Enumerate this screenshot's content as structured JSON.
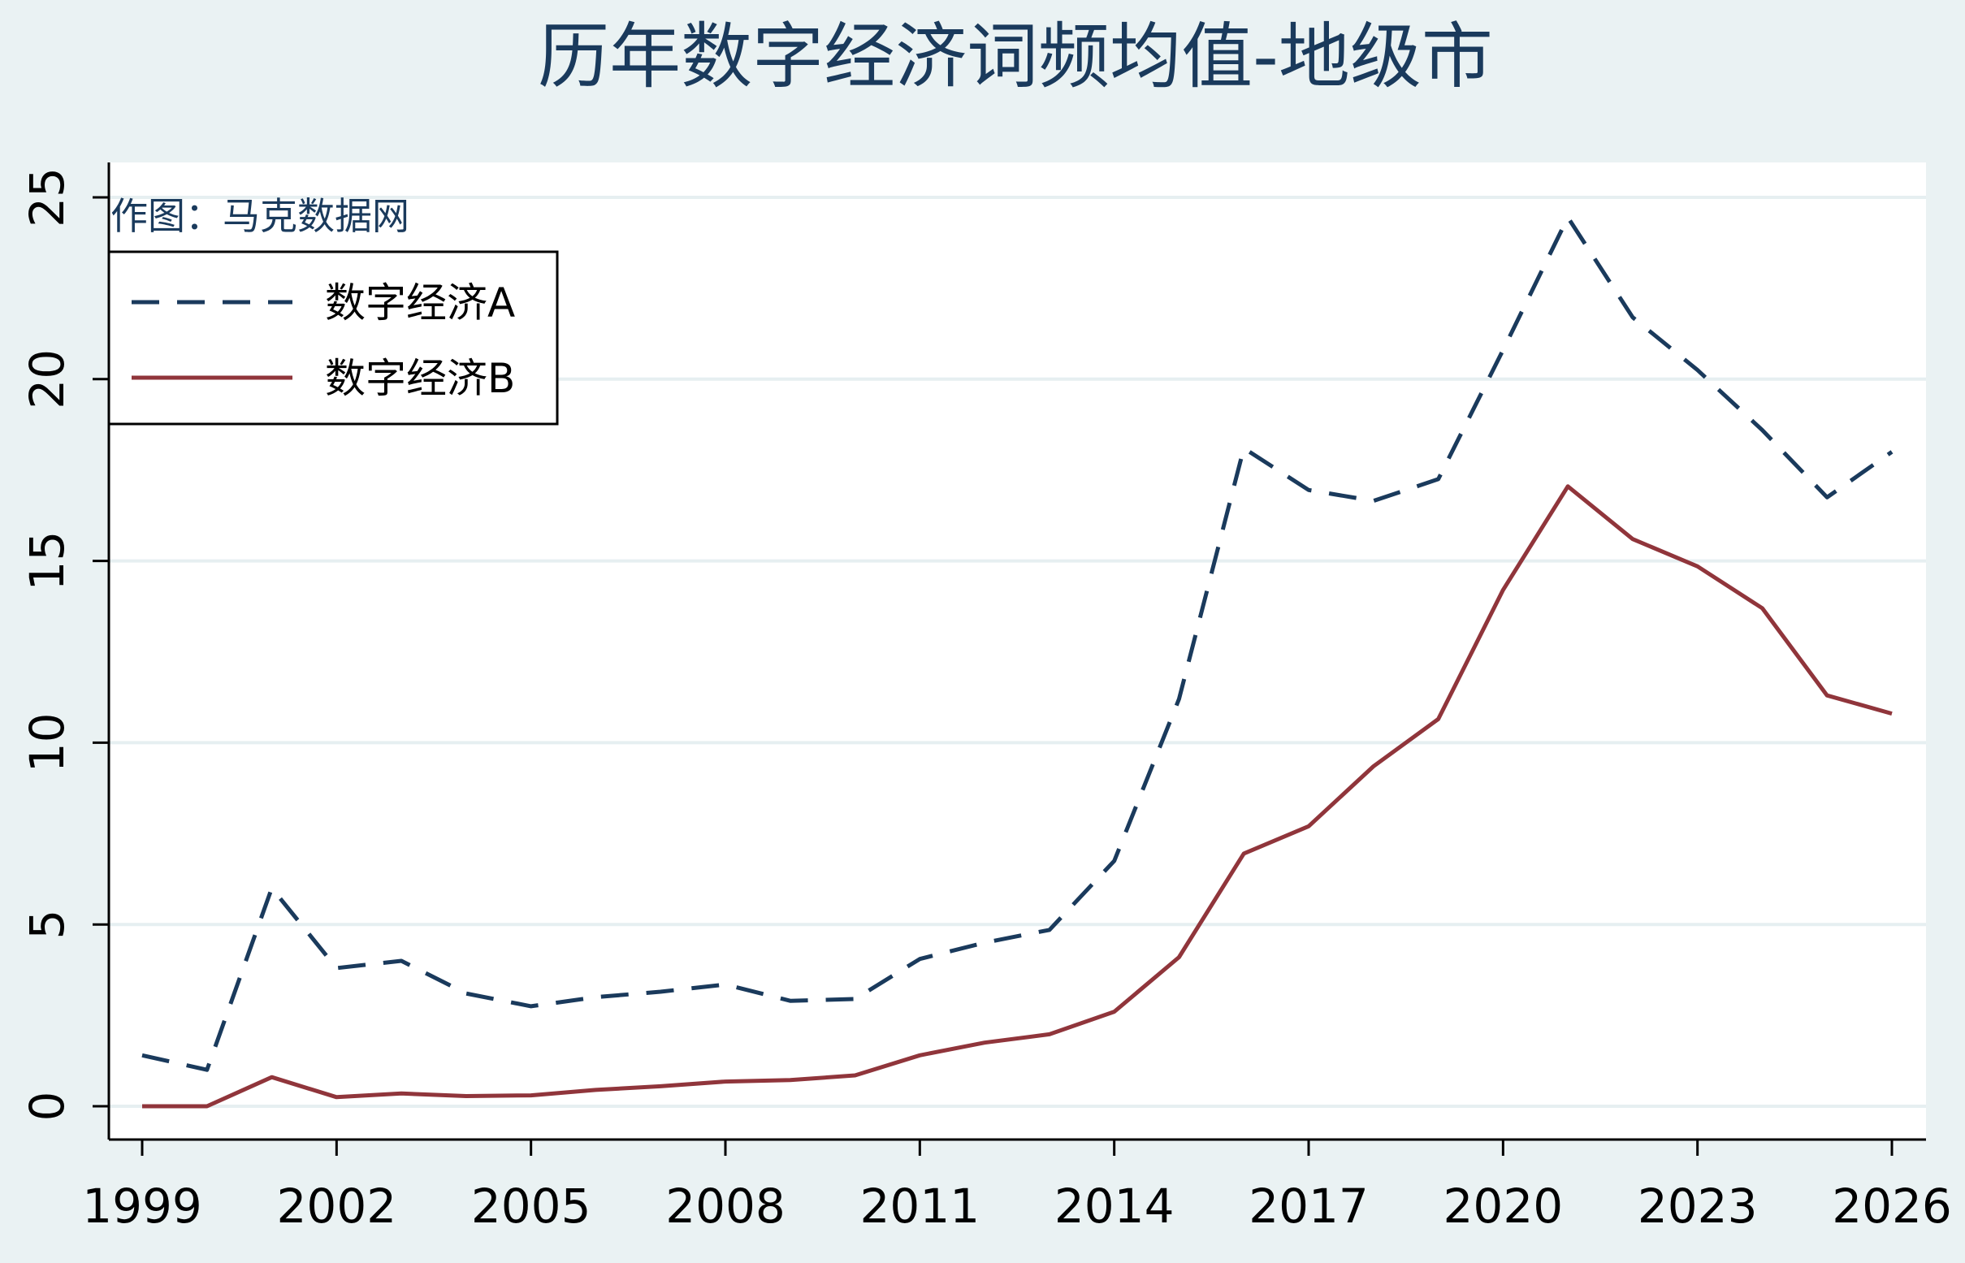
{
  "chart_data": {
    "type": "line",
    "title": "历年数字经济词频均值-地级市",
    "annotation": "作图：马克数据网",
    "xlabel": "",
    "ylabel": "",
    "xlim": [
      1999,
      2026
    ],
    "ylim": [
      0,
      25
    ],
    "x_ticks": [
      1999,
      2002,
      2005,
      2008,
      2011,
      2014,
      2017,
      2020,
      2023,
      2026
    ],
    "y_ticks": [
      0,
      5,
      10,
      15,
      20,
      25
    ],
    "grid": true,
    "legend_position": "top-left",
    "x": [
      1999,
      2000,
      2001,
      2002,
      2003,
      2004,
      2005,
      2006,
      2007,
      2008,
      2009,
      2010,
      2011,
      2012,
      2013,
      2014,
      2015,
      2016,
      2017,
      2018,
      2019,
      2020,
      2021,
      2022,
      2023,
      2024,
      2025,
      2026
    ],
    "series": [
      {
        "name": "数字经济A",
        "color": "#1a3a5c",
        "line_style": "dashed",
        "values": [
          1.4,
          1.0,
          6.0,
          3.8,
          4.0,
          3.1,
          2.75,
          3.0,
          3.15,
          3.35,
          2.9,
          2.95,
          4.05,
          4.5,
          4.85,
          6.75,
          11.2,
          18.1,
          16.95,
          16.65,
          17.25,
          20.8,
          24.45,
          21.7,
          20.25,
          18.6,
          16.75,
          18.0
        ]
      },
      {
        "name": "数字经济B",
        "color": "#90353b",
        "line_style": "solid",
        "values": [
          0.0,
          0.0,
          0.8,
          0.25,
          0.35,
          0.28,
          0.3,
          0.45,
          0.55,
          0.68,
          0.72,
          0.85,
          1.4,
          1.75,
          1.98,
          2.6,
          4.1,
          6.95,
          7.7,
          9.35,
          10.65,
          14.2,
          17.05,
          15.6,
          14.85,
          13.7,
          11.3,
          10.8
        ]
      }
    ]
  }
}
